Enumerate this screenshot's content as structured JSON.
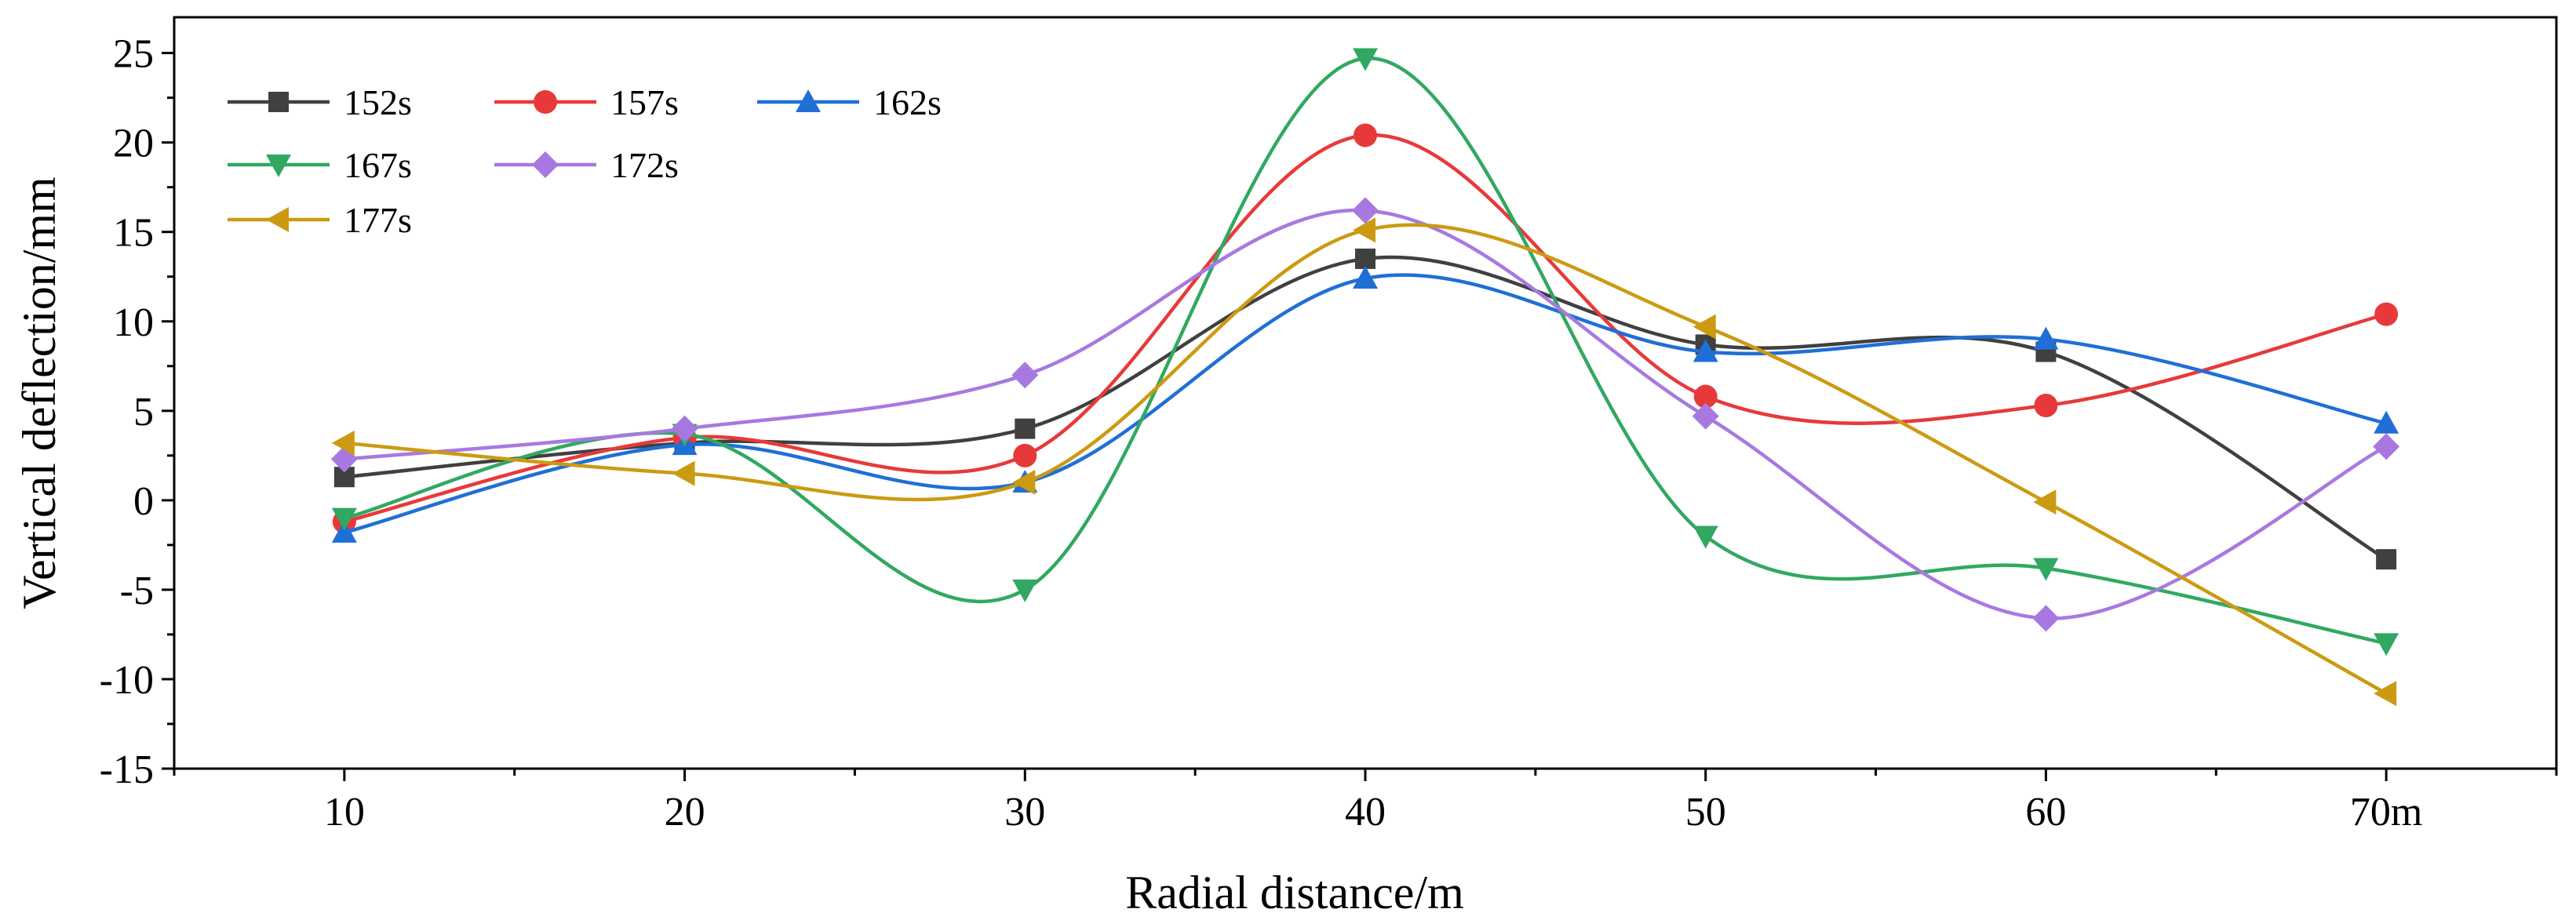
{
  "chart_data": {
    "type": "line",
    "title": "",
    "xlabel": "Radial distance/m",
    "ylabel": "Vertical deflection/mm",
    "x": [
      10,
      20,
      30,
      40,
      50,
      60,
      70
    ],
    "x_tick_labels": [
      "10",
      "20",
      "30",
      "40",
      "50",
      "60",
      "70m"
    ],
    "xlim": [
      5,
      75
    ],
    "ylim": [
      -15,
      27
    ],
    "y_ticks": [
      25,
      20,
      15,
      10,
      5,
      0,
      -5,
      -10,
      -15
    ],
    "y_tick_labels": [
      "25",
      "20",
      "15",
      "10",
      "5",
      "0",
      "-5",
      "-10",
      "-15"
    ],
    "grid": false,
    "legend_position": "top-left",
    "series": [
      {
        "name": "152s",
        "marker": "square",
        "color": "#404040",
        "values": [
          1.3,
          3.2,
          4.0,
          13.5,
          8.7,
          8.3,
          -3.3
        ]
      },
      {
        "name": "157s",
        "marker": "circle",
        "color": "#e8393a",
        "values": [
          -1.2,
          3.5,
          2.5,
          20.4,
          5.8,
          5.3,
          10.4
        ]
      },
      {
        "name": "162s",
        "marker": "triangle-up",
        "color": "#1f6fd6",
        "values": [
          -1.8,
          3.1,
          1.0,
          12.4,
          8.3,
          9.0,
          4.3
        ]
      },
      {
        "name": "167s",
        "marker": "triangle-down",
        "color": "#31a862",
        "values": [
          -1.0,
          3.7,
          -5.0,
          24.7,
          -2.0,
          -3.8,
          -8.0
        ]
      },
      {
        "name": "172s",
        "marker": "diamond",
        "color": "#a779e0",
        "values": [
          2.3,
          4.0,
          7.0,
          16.2,
          4.7,
          -6.6,
          3.0
        ]
      },
      {
        "name": "177s",
        "marker": "triangle-left",
        "color": "#cc9a12",
        "values": [
          3.2,
          1.5,
          1.0,
          15.1,
          9.7,
          -0.1,
          -10.8
        ]
      }
    ]
  }
}
